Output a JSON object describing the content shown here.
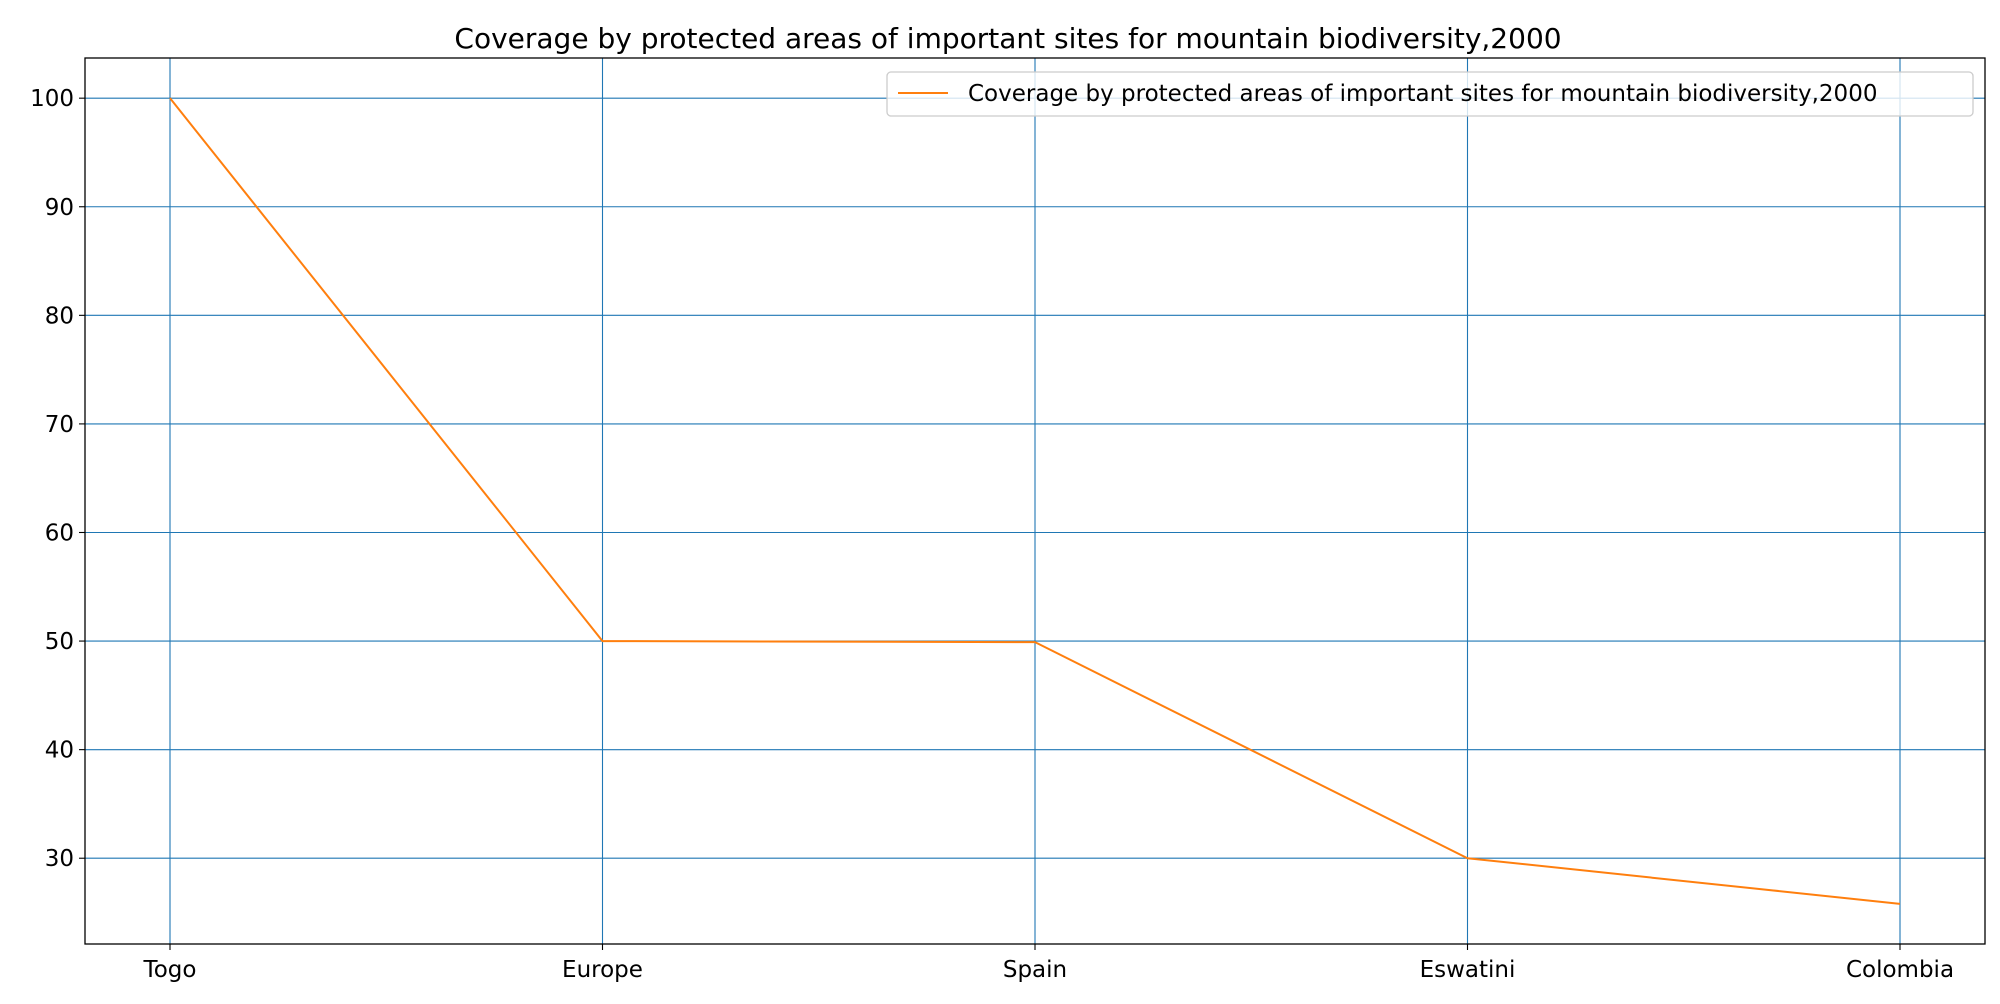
{
  "chart_data": {
    "type": "line",
    "title": "Coverage by protected areas of important sites for mountain biodiversity,2000",
    "xlabel": "",
    "ylabel": "",
    "categories": [
      "Togo",
      "Europe",
      "Spain",
      "Eswatini",
      "Colombia"
    ],
    "series": [
      {
        "name": "Coverage by protected areas of important sites for mountain biodiversity,2000",
        "values": [
          100,
          50,
          49.9,
          30,
          25.8
        ],
        "color": "#ff7f0e"
      }
    ],
    "ylim": [
      22.1,
      103.7
    ],
    "yticks": [
      30,
      40,
      50,
      60,
      70,
      80,
      90,
      100
    ],
    "grid": true,
    "grid_color": "#1f77b4",
    "legend_position": "top-right"
  }
}
